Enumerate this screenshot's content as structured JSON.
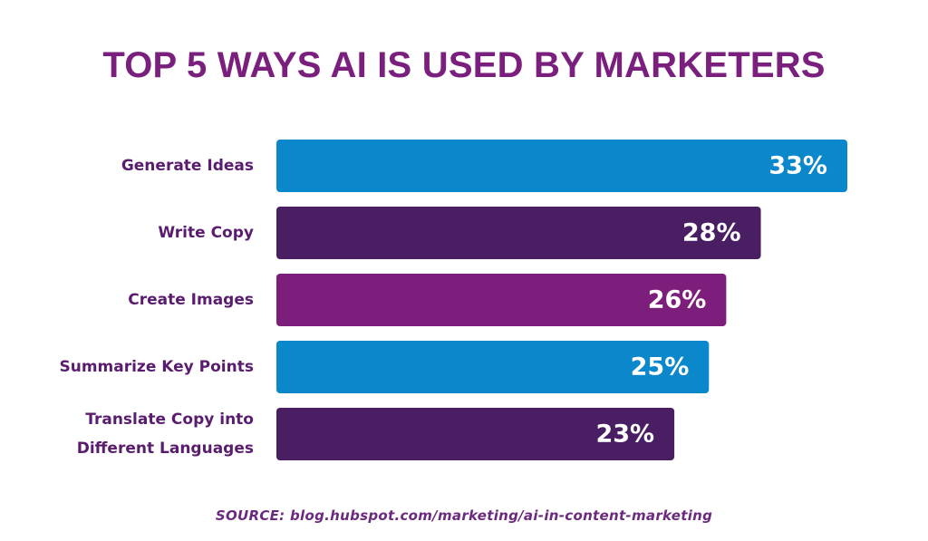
{
  "colors": {
    "title": "#7b1f7f",
    "label": "#5a1c6e",
    "blue": "#0b87cb",
    "dark_purple": "#4a1e62",
    "magenta": "#7e1e7c",
    "value_text": "#ffffff"
  },
  "chart_data": {
    "type": "bar",
    "orientation": "horizontal",
    "title": "TOP 5 WAYS AI IS USED BY MARKETERS",
    "categories": [
      [
        "Generate Ideas"
      ],
      [
        "Write Copy"
      ],
      [
        "Create Images"
      ],
      [
        "Summarize Key Points"
      ],
      [
        "Translate Copy into",
        "Different Languages"
      ]
    ],
    "values": [
      33,
      28,
      26,
      25,
      23
    ],
    "value_labels": [
      "33%",
      "28%",
      "26%",
      "25%",
      "23%"
    ],
    "bar_colors": [
      "#0b87cb",
      "#4a1e62",
      "#7e1e7c",
      "#0b87cb",
      "#4a1e62"
    ],
    "xlim": [
      0,
      33
    ],
    "grid": false,
    "legend": "none"
  },
  "source_text": "SOURCE: blog.hubspot.com/marketing/ai-in-content-marketing"
}
